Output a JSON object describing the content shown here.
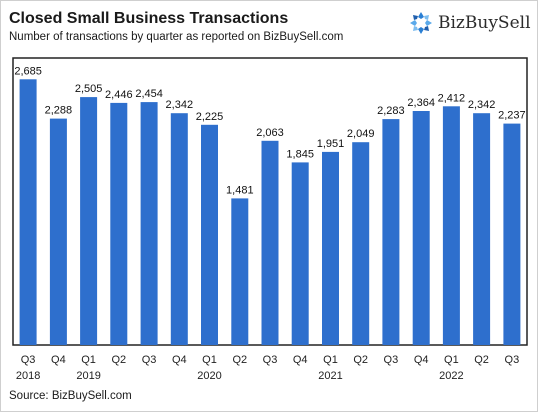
{
  "header": {
    "title": "Closed Small Business Transactions",
    "subtitle": "Number of transactions by quarter as reported on BizBuySell.com",
    "logo_text": "BizBuySell"
  },
  "footer": {
    "source": "Source: BizBuySell.com"
  },
  "colors": {
    "bar": "#2e6fcd",
    "frame": "#222222",
    "logo_blue": "#2a7fd4"
  },
  "chart_data": {
    "type": "bar",
    "categories": [
      "Q3",
      "Q4",
      "Q1",
      "Q2",
      "Q3",
      "Q4",
      "Q1",
      "Q2",
      "Q3",
      "Q4",
      "Q1",
      "Q2",
      "Q3",
      "Q4",
      "Q1",
      "Q2",
      "Q3"
    ],
    "year_labels": [
      {
        "index": 0,
        "label": "2018"
      },
      {
        "index": 2,
        "label": "2019"
      },
      {
        "index": 6,
        "label": "2020"
      },
      {
        "index": 10,
        "label": "2021"
      },
      {
        "index": 14,
        "label": "2022"
      }
    ],
    "values": [
      2685,
      2288,
      2505,
      2446,
      2454,
      2342,
      2225,
      1481,
      2063,
      1845,
      1951,
      2049,
      2283,
      2364,
      2412,
      2342,
      2237
    ],
    "value_labels": [
      "2,685",
      "2,288",
      "2,505",
      "2,446",
      "2,454",
      "2,342",
      "2,225",
      "1,481",
      "2,063",
      "1,845",
      "1,951",
      "2,049",
      "2,283",
      "2,364",
      "2,412",
      "2,342",
      "2,237"
    ],
    "ylim": [
      0,
      2900
    ],
    "grid": false,
    "title": "Closed Small Business Transactions",
    "xlabel": "",
    "ylabel": ""
  }
}
